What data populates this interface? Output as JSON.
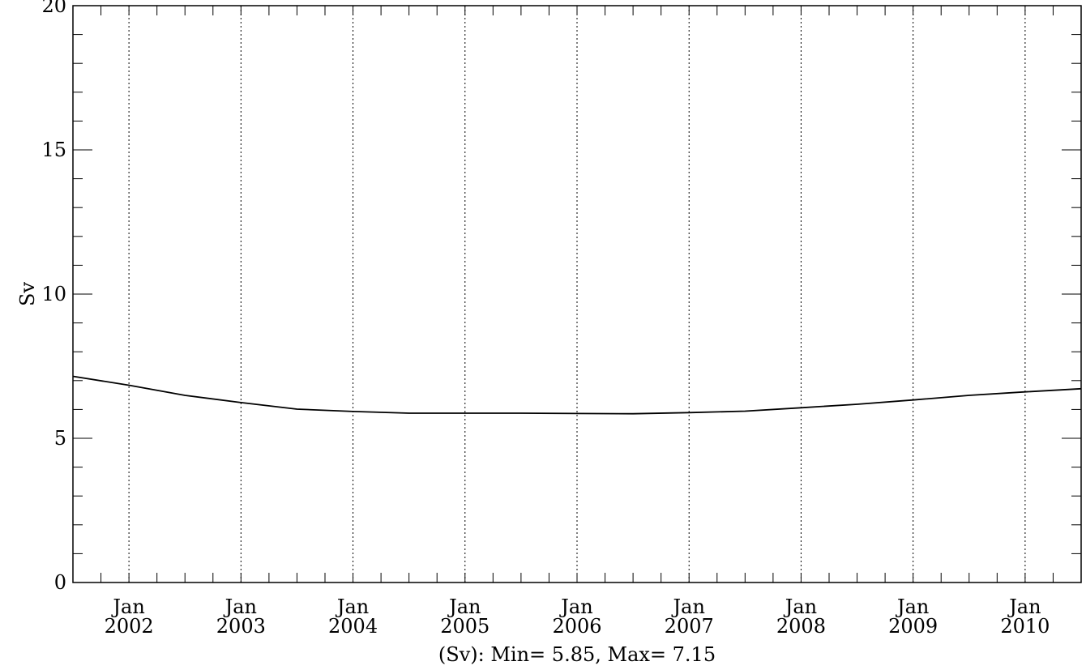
{
  "chart_data": {
    "type": "line",
    "title": "",
    "xlabel": "",
    "ylabel": "Sv",
    "summary": "(Sv): Min= 5.85, Max= 7.15",
    "ylim": [
      0,
      20
    ],
    "xlim": [
      "2001-07",
      "2010-07"
    ],
    "y_ticks": [
      "0",
      "5",
      "10",
      "15",
      "20"
    ],
    "y_minor_step": 1,
    "x_ticks": [
      {
        "month": "Jan",
        "year": "2002",
        "x": "2002-01"
      },
      {
        "month": "Jan",
        "year": "2003",
        "x": "2003-01"
      },
      {
        "month": "Jan",
        "year": "2004",
        "x": "2004-01"
      },
      {
        "month": "Jan",
        "year": "2005",
        "x": "2005-01"
      },
      {
        "month": "Jan",
        "year": "2006",
        "x": "2006-01"
      },
      {
        "month": "Jan",
        "year": "2007",
        "x": "2007-01"
      },
      {
        "month": "Jan",
        "year": "2008",
        "x": "2008-01"
      },
      {
        "month": "Jan",
        "year": "2009",
        "x": "2009-01"
      },
      {
        "month": "Jan",
        "year": "2010",
        "x": "2010-01"
      }
    ],
    "x_minor_step_months": 3,
    "grid": "vertical dotted at January of each year",
    "series": [
      {
        "color": "#000000",
        "x": [
          "2001-07",
          "2002-01",
          "2002-07",
          "2003-01",
          "2003-07",
          "2004-01",
          "2004-07",
          "2005-01",
          "2005-07",
          "2006-01",
          "2006-07",
          "2007-01",
          "2007-07",
          "2008-01",
          "2008-07",
          "2009-01",
          "2009-07",
          "2010-01",
          "2010-07"
        ],
        "y": [
          7.15,
          6.84,
          6.49,
          6.24,
          6.01,
          5.93,
          5.87,
          5.87,
          5.87,
          5.86,
          5.85,
          5.89,
          5.94,
          6.06,
          6.18,
          6.33,
          6.49,
          6.61,
          6.72
        ]
      }
    ]
  }
}
